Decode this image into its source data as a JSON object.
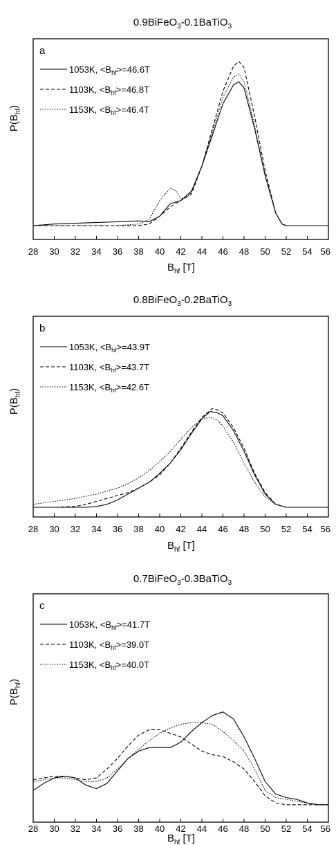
{
  "figure": {
    "panels": [
      {
        "title_main": "0.9BiFeO",
        "title_sub1": "3",
        "title_mid": "-0.1BaTiO",
        "title_sub2": "3",
        "letter": "a",
        "ylabel_main": "P(B",
        "ylabel_sub": "hf",
        "ylabel_end": ")",
        "xlabel_main": "B",
        "xlabel_sub": "hf",
        "xlabel_end": " [T]",
        "legend": [
          {
            "prefix": "1053K, <B",
            "sub": "hf",
            "suffix": ">=46.6T"
          },
          {
            "prefix": "1103K, <B",
            "sub": "hf",
            "suffix": ">=46.8T"
          },
          {
            "prefix": "1153K, <B",
            "sub": "hf",
            "suffix": ">=46.4T"
          }
        ]
      },
      {
        "title_main": "0.8BiFeO",
        "title_sub1": "3",
        "title_mid": "-0.2BaTiO",
        "title_sub2": "3",
        "letter": "b",
        "ylabel_main": "P(B",
        "ylabel_sub": "hf",
        "ylabel_end": ")",
        "xlabel_main": "B",
        "xlabel_sub": "hf",
        "xlabel_end": " [T]",
        "legend": [
          {
            "prefix": "1053K, <B",
            "sub": "hf",
            "suffix": ">=43.9T"
          },
          {
            "prefix": "1103K, <B",
            "sub": "hf",
            "suffix": ">=43.7T"
          },
          {
            "prefix": "1153K, <B",
            "sub": "hf",
            "suffix": ">=42.6T"
          }
        ]
      },
      {
        "title_main": "0.7BiFeO",
        "title_sub1": "3",
        "title_mid": "-0.3BaTiO",
        "title_sub2": "3",
        "letter": "c",
        "ylabel_main": "P(B",
        "ylabel_sub": "hf",
        "ylabel_end": ")",
        "xlabel_main": "B",
        "xlabel_sub": "hf",
        "xlabel_end": " [T]",
        "legend": [
          {
            "prefix": "1053K, <B",
            "sub": "hf",
            "suffix": ">=41.7T"
          },
          {
            "prefix": "1103K, <B",
            "sub": "hf",
            "suffix": ">=39.0T"
          },
          {
            "prefix": "1153K, <B",
            "sub": "hf",
            "suffix": ">=40.0T"
          }
        ]
      }
    ]
  },
  "chart_data": [
    {
      "type": "line",
      "title": "0.9BiFeO3-0.1BaTiO3",
      "xlabel": "Bhf [T]",
      "ylabel": "P(Bhf)",
      "xlim": [
        28,
        56
      ],
      "ylim": [
        0,
        1
      ],
      "xticks": [
        "28",
        "30",
        "32",
        "34",
        "36",
        "38",
        "40",
        "42",
        "44",
        "46",
        "48",
        "50",
        "52",
        "54",
        "56"
      ],
      "grid": false,
      "legend_position": "top-left",
      "series": [
        {
          "name": "1053K, <Bhf>=46.6T",
          "style": "solid",
          "x": [
            28,
            30,
            32,
            34,
            36,
            38,
            39,
            40,
            41,
            42,
            43,
            44,
            45,
            46,
            47,
            47.5,
            48,
            49,
            50,
            51,
            51.6,
            52,
            56
          ],
          "y": [
            0,
            0.01,
            0.015,
            0.02,
            0.025,
            0.03,
            0.025,
            0.06,
            0.14,
            0.16,
            0.22,
            0.38,
            0.58,
            0.78,
            0.9,
            0.92,
            0.88,
            0.62,
            0.32,
            0.08,
            0.01,
            0,
            0
          ]
        },
        {
          "name": "1103K, <Bhf>=46.8T",
          "style": "dashed",
          "x": [
            28,
            30,
            32,
            34,
            36,
            38,
            39,
            40,
            41,
            42,
            43,
            44,
            45,
            46,
            47,
            47.5,
            48,
            49,
            50,
            51,
            51.6,
            52,
            56
          ],
          "y": [
            0,
            0,
            0,
            0,
            0,
            0,
            0.01,
            0.06,
            0.12,
            0.16,
            0.2,
            0.38,
            0.62,
            0.86,
            1.02,
            1.05,
            1.01,
            0.7,
            0.35,
            0.08,
            0.01,
            0,
            0
          ]
        },
        {
          "name": "1153K, <Bhf>=46.4T",
          "style": "dotted",
          "x": [
            28,
            30,
            32,
            34,
            36,
            38,
            39,
            40,
            40.5,
            41,
            41.6,
            42,
            42.5,
            43,
            44,
            45,
            46,
            47,
            47.5,
            48,
            49,
            50,
            51,
            51.6,
            52,
            56
          ],
          "y": [
            0,
            0,
            0,
            0,
            0,
            0.01,
            0.04,
            0.16,
            0.2,
            0.24,
            0.22,
            0.17,
            0.18,
            0.21,
            0.38,
            0.6,
            0.82,
            0.95,
            0.97,
            0.92,
            0.64,
            0.32,
            0.08,
            0.01,
            0,
            0
          ]
        }
      ]
    },
    {
      "type": "line",
      "title": "0.8BiFeO3-0.2BaTiO3",
      "xlabel": "Bhf [T]",
      "ylabel": "P(Bhf)",
      "xlim": [
        28,
        56
      ],
      "ylim": [
        0,
        1
      ],
      "xticks": [
        "28",
        "30",
        "32",
        "34",
        "36",
        "38",
        "40",
        "42",
        "44",
        "46",
        "48",
        "50",
        "52",
        "54",
        "56"
      ],
      "grid": false,
      "legend_position": "top-left",
      "series": [
        {
          "name": "1053K, <Bhf>=43.9T",
          "style": "solid",
          "x": [
            28,
            30,
            32,
            33,
            34,
            35,
            36,
            37,
            38,
            39,
            40,
            41,
            42,
            43,
            44,
            44.8,
            45.5,
            46,
            47,
            48,
            49,
            50,
            51,
            52,
            56
          ],
          "y": [
            0,
            0,
            0,
            0,
            0.005,
            0.02,
            0.05,
            0.09,
            0.13,
            0.17,
            0.23,
            0.3,
            0.39,
            0.5,
            0.6,
            0.65,
            0.64,
            0.62,
            0.52,
            0.38,
            0.22,
            0.09,
            0.02,
            0,
            0
          ]
        },
        {
          "name": "1103K, <Bhf>=43.7T",
          "style": "dashed",
          "x": [
            28,
            30,
            32,
            33,
            34,
            35,
            36,
            37,
            38,
            39,
            40,
            41,
            42,
            43,
            44,
            45,
            45.5,
            46,
            47,
            48,
            49,
            50,
            51,
            52,
            56
          ],
          "y": [
            0,
            0,
            0.005,
            0.02,
            0.04,
            0.06,
            0.08,
            0.1,
            0.13,
            0.17,
            0.22,
            0.3,
            0.4,
            0.51,
            0.61,
            0.67,
            0.66,
            0.64,
            0.54,
            0.4,
            0.23,
            0.1,
            0.02,
            0,
            0
          ]
        },
        {
          "name": "1153K, <Bhf>=42.6T",
          "style": "dotted",
          "x": [
            28,
            30,
            32,
            34,
            35,
            36,
            37,
            38,
            39,
            40,
            41,
            42,
            43,
            44,
            44.8,
            45.5,
            46,
            47,
            48,
            49,
            50,
            51,
            52,
            56
          ],
          "y": [
            0.02,
            0.04,
            0.06,
            0.09,
            0.11,
            0.13,
            0.16,
            0.2,
            0.25,
            0.31,
            0.38,
            0.46,
            0.54,
            0.6,
            0.61,
            0.59,
            0.55,
            0.44,
            0.3,
            0.17,
            0.07,
            0.02,
            0,
            0
          ]
        }
      ]
    },
    {
      "type": "line",
      "title": "0.7BiFeO3-0.3BaTiO3",
      "xlabel": "Bhf [T]",
      "ylabel": "P(Bhf)",
      "xlim": [
        28,
        56
      ],
      "ylim": [
        0,
        1
      ],
      "xticks": [
        "28",
        "30",
        "32",
        "34",
        "36",
        "38",
        "40",
        "42",
        "44",
        "46",
        "48",
        "50",
        "52",
        "54",
        "56"
      ],
      "grid": false,
      "legend_position": "top-left",
      "series": [
        {
          "name": "1053K, <Bhf>=41.7T",
          "style": "solid",
          "x": [
            28,
            29,
            30,
            31,
            32,
            33,
            34,
            35,
            36,
            37,
            38,
            39,
            40,
            41,
            42,
            43,
            44,
            45,
            46,
            47,
            48,
            49,
            50,
            51,
            52,
            53,
            54,
            55,
            56
          ],
          "y": [
            0.1,
            0.14,
            0.17,
            0.18,
            0.17,
            0.13,
            0.11,
            0.14,
            0.21,
            0.28,
            0.32,
            0.34,
            0.34,
            0.34,
            0.37,
            0.43,
            0.48,
            0.52,
            0.54,
            0.5,
            0.4,
            0.28,
            0.15,
            0.08,
            0.06,
            0.05,
            0.03,
            0.02,
            0.02
          ]
        },
        {
          "name": "1103K, <Bhf>=39.0T",
          "style": "dashed",
          "x": [
            28,
            29,
            30,
            31,
            32,
            33,
            34,
            35,
            36,
            37,
            38,
            39,
            40,
            41,
            42,
            43,
            44,
            45,
            46,
            47,
            48,
            49,
            50,
            51,
            52,
            53,
            54,
            55,
            56
          ],
          "y": [
            0.16,
            0.17,
            0.18,
            0.18,
            0.17,
            0.16,
            0.17,
            0.22,
            0.28,
            0.35,
            0.41,
            0.44,
            0.44,
            0.42,
            0.4,
            0.36,
            0.32,
            0.3,
            0.29,
            0.26,
            0.22,
            0.15,
            0.07,
            0.03,
            0.02,
            0.02,
            0.02,
            0.02,
            0.02
          ]
        },
        {
          "name": "1153K, <Bhf>=40.0T",
          "style": "dotted",
          "x": [
            28,
            29,
            30,
            31,
            32,
            33,
            34,
            35,
            36,
            37,
            38,
            39,
            40,
            41,
            42,
            43,
            44,
            45,
            46,
            47,
            48,
            49,
            50,
            51,
            52,
            53,
            54,
            55,
            56
          ],
          "y": [
            0.15,
            0.16,
            0.17,
            0.17,
            0.16,
            0.15,
            0.15,
            0.17,
            0.22,
            0.28,
            0.33,
            0.38,
            0.42,
            0.45,
            0.47,
            0.48,
            0.48,
            0.47,
            0.43,
            0.38,
            0.32,
            0.22,
            0.1,
            0.06,
            0.05,
            0.04,
            0.03,
            0.02,
            0.02
          ]
        }
      ]
    }
  ]
}
